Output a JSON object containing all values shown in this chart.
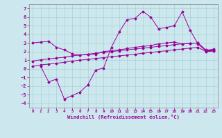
{
  "xlabel": "Windchill (Refroidissement éolien,°C)",
  "background_color": "#cce8ee",
  "line_color": "#990099",
  "xlim": [
    -0.5,
    23.5
  ],
  "ylim": [
    -4.5,
    7.5
  ],
  "xticks": [
    0,
    1,
    2,
    3,
    4,
    5,
    6,
    7,
    8,
    9,
    10,
    11,
    12,
    13,
    14,
    15,
    16,
    17,
    18,
    19,
    20,
    21,
    22,
    23
  ],
  "yticks": [
    -4,
    -3,
    -2,
    -1,
    0,
    1,
    2,
    3,
    4,
    5,
    6,
    7
  ],
  "line1_x": [
    0,
    1,
    2,
    3,
    4,
    5,
    6,
    7,
    8,
    9,
    10,
    11,
    12,
    13,
    14,
    15,
    16,
    17,
    18,
    19,
    20,
    21,
    22,
    23
  ],
  "line1_y": [
    3.0,
    3.1,
    3.2,
    2.5,
    2.2,
    1.75,
    1.6,
    1.65,
    1.7,
    2.0,
    2.1,
    2.2,
    2.35,
    2.5,
    2.6,
    2.7,
    2.9,
    3.0,
    3.1,
    2.9,
    2.95,
    3.0,
    2.2,
    2.2
  ],
  "line2_x": [
    0,
    1,
    2,
    3,
    4,
    5,
    6,
    7,
    8,
    9,
    10,
    11,
    12,
    13,
    14,
    15,
    16,
    17,
    18,
    19,
    20,
    21,
    22,
    23
  ],
  "line2_y": [
    0.9,
    1.05,
    1.15,
    1.25,
    1.35,
    1.5,
    1.6,
    1.7,
    1.8,
    1.9,
    2.0,
    2.1,
    2.2,
    2.3,
    2.4,
    2.5,
    2.6,
    2.7,
    2.8,
    2.9,
    2.95,
    3.0,
    2.08,
    2.12
  ],
  "line3_x": [
    0,
    1,
    2,
    3,
    4,
    5,
    6,
    7,
    8,
    9,
    10,
    11,
    12,
    13,
    14,
    15,
    16,
    17,
    18,
    19,
    20,
    21,
    22,
    23
  ],
  "line3_y": [
    0.3,
    0.45,
    0.55,
    0.65,
    0.75,
    0.9,
    1.0,
    1.1,
    1.2,
    1.3,
    1.4,
    1.5,
    1.6,
    1.7,
    1.8,
    1.9,
    2.0,
    2.1,
    2.2,
    2.3,
    2.4,
    2.5,
    2.0,
    2.05
  ],
  "line4_x": [
    1,
    2,
    3,
    4,
    5,
    6,
    7,
    8,
    9,
    10,
    11,
    12,
    13,
    14,
    15,
    16,
    17,
    18,
    19,
    20,
    21,
    22,
    23
  ],
  "line4_y": [
    0.3,
    -1.5,
    -1.2,
    -3.5,
    -3.1,
    -2.7,
    -1.85,
    -0.15,
    0.1,
    2.5,
    4.3,
    5.7,
    5.85,
    6.65,
    6.0,
    4.65,
    4.8,
    5.0,
    6.6,
    4.5,
    2.9,
    2.1,
    2.3
  ]
}
